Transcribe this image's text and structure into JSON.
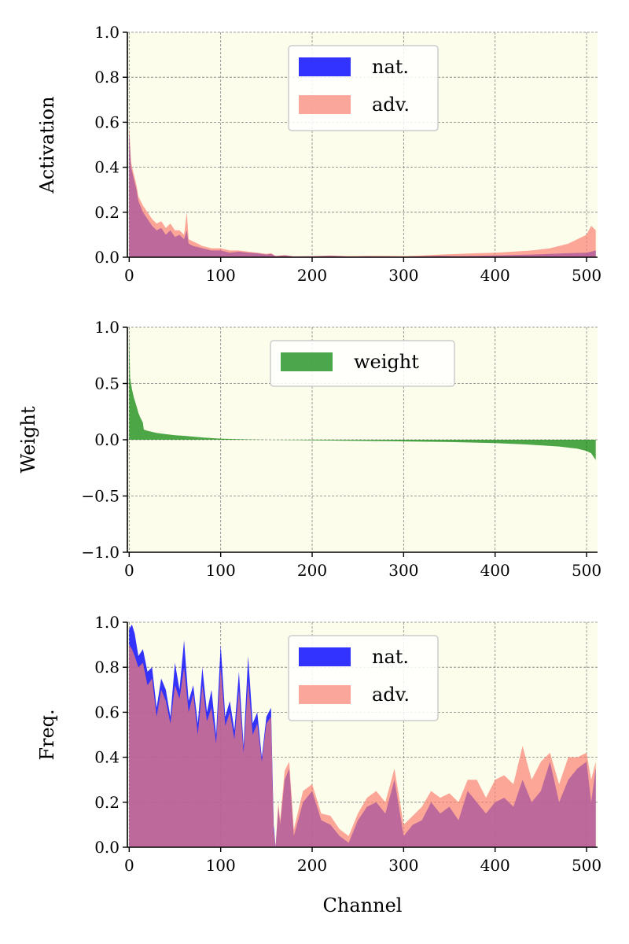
{
  "chart_data": [
    {
      "type": "area",
      "ylabel": "Activation",
      "xlabel": "",
      "xlim": [
        -2,
        512
      ],
      "ylim": [
        0,
        1
      ],
      "xticks": [
        0,
        100,
        200,
        300,
        400,
        500
      ],
      "xtick_labels": [
        "0",
        "100",
        "200",
        "300",
        "400",
        "500"
      ],
      "yticks": [
        0,
        0.2,
        0.4,
        0.6,
        0.8,
        1.0
      ],
      "ytick_labels": [
        "0.0",
        "0.2",
        "0.4",
        "0.6",
        "0.8",
        "1.0"
      ],
      "grid": true,
      "legend_position": "top-center",
      "series": [
        {
          "name": "nat.",
          "color": "#0000ff",
          "x": [
            0,
            2,
            5,
            8,
            10,
            15,
            20,
            25,
            30,
            35,
            40,
            45,
            50,
            55,
            60,
            63,
            65,
            70,
            80,
            90,
            100,
            110,
            120,
            130,
            140,
            150,
            155,
            160,
            170,
            180,
            200,
            220,
            240,
            260,
            280,
            300,
            320,
            340,
            360,
            380,
            400,
            420,
            440,
            460,
            480,
            500,
            505,
            510
          ],
          "y": [
            0.55,
            0.4,
            0.35,
            0.3,
            0.25,
            0.2,
            0.17,
            0.14,
            0.12,
            0.13,
            0.1,
            0.12,
            0.09,
            0.1,
            0.08,
            0.12,
            0.06,
            0.05,
            0.04,
            0.03,
            0.03,
            0.02,
            0.025,
            0.02,
            0.018,
            0.012,
            0.015,
            0.005,
            0.008,
            0.003,
            0.004,
            0.006,
            0.003,
            0.004,
            0.003,
            0.002,
            0.004,
            0.006,
            0.005,
            0.006,
            0.008,
            0.01,
            0.012,
            0.015,
            0.018,
            0.02,
            0.025,
            0.03
          ]
        },
        {
          "name": "adv.",
          "color": "#fa8072",
          "x": [
            0,
            2,
            5,
            8,
            10,
            15,
            20,
            25,
            30,
            35,
            40,
            45,
            50,
            55,
            60,
            63,
            65,
            70,
            80,
            90,
            100,
            110,
            120,
            130,
            140,
            150,
            155,
            160,
            170,
            180,
            200,
            220,
            240,
            260,
            280,
            300,
            320,
            340,
            360,
            380,
            400,
            420,
            440,
            460,
            480,
            500,
            505,
            510
          ],
          "y": [
            0.58,
            0.42,
            0.37,
            0.32,
            0.27,
            0.23,
            0.2,
            0.17,
            0.15,
            0.16,
            0.13,
            0.15,
            0.12,
            0.12,
            0.1,
            0.2,
            0.08,
            0.07,
            0.05,
            0.04,
            0.04,
            0.03,
            0.03,
            0.025,
            0.02,
            0.015,
            0.018,
            0.006,
            0.01,
            0.004,
            0.005,
            0.008,
            0.005,
            0.006,
            0.006,
            0.005,
            0.008,
            0.012,
            0.015,
            0.018,
            0.02,
            0.025,
            0.03,
            0.04,
            0.06,
            0.1,
            0.14,
            0.12
          ]
        }
      ]
    },
    {
      "type": "area",
      "ylabel": "Weight",
      "xlabel": "",
      "xlim": [
        -2,
        512
      ],
      "ylim": [
        -1,
        1
      ],
      "xticks": [
        0,
        100,
        200,
        300,
        400,
        500
      ],
      "xtick_labels": [
        "0",
        "100",
        "200",
        "300",
        "400",
        "500"
      ],
      "yticks": [
        -1.0,
        -0.5,
        0.0,
        0.5,
        1.0
      ],
      "ytick_labels": [
        "−1.0",
        "−0.5",
        "0.0",
        "0.5",
        "1.0"
      ],
      "grid": true,
      "legend_position": "top-center",
      "series": [
        {
          "name": "weight",
          "color": "#008000",
          "x": [
            0,
            1,
            3,
            5,
            8,
            10,
            12,
            15,
            16,
            20,
            30,
            40,
            50,
            60,
            80,
            100,
            120,
            150,
            200,
            250,
            300,
            350,
            400,
            430,
            450,
            470,
            480,
            490,
            500,
            505,
            510
          ],
          "y": [
            0.95,
            0.55,
            0.45,
            0.38,
            0.3,
            0.24,
            0.2,
            0.15,
            0.09,
            0.08,
            0.06,
            0.05,
            0.04,
            0.035,
            0.02,
            0.01,
            0.005,
            0.0,
            -0.005,
            -0.01,
            -0.015,
            -0.02,
            -0.03,
            -0.04,
            -0.05,
            -0.06,
            -0.07,
            -0.08,
            -0.1,
            -0.12,
            -0.18
          ]
        }
      ]
    },
    {
      "type": "area",
      "ylabel": "Freq.",
      "xlabel": "Channel",
      "xlim": [
        -2,
        512
      ],
      "ylim": [
        0,
        1
      ],
      "xticks": [
        0,
        100,
        200,
        300,
        400,
        500
      ],
      "xtick_labels": [
        "0",
        "100",
        "200",
        "300",
        "400",
        "500"
      ],
      "yticks": [
        0,
        0.2,
        0.4,
        0.6,
        0.8,
        1.0
      ],
      "ytick_labels": [
        "0.0",
        "0.2",
        "0.4",
        "0.6",
        "0.8",
        "1.0"
      ],
      "grid": true,
      "legend_position": "top-center",
      "series": [
        {
          "name": "nat.",
          "color": "#0000ff",
          "x": [
            0,
            3,
            6,
            10,
            15,
            20,
            25,
            30,
            35,
            40,
            45,
            50,
            55,
            60,
            65,
            70,
            75,
            80,
            85,
            90,
            95,
            100,
            105,
            110,
            115,
            120,
            125,
            130,
            135,
            140,
            145,
            150,
            155,
            158,
            160,
            163,
            165,
            170,
            175,
            180,
            190,
            200,
            210,
            220,
            230,
            240,
            250,
            260,
            270,
            280,
            290,
            300,
            310,
            320,
            330,
            340,
            350,
            360,
            370,
            380,
            390,
            400,
            410,
            420,
            430,
            440,
            450,
            460,
            470,
            480,
            490,
            500,
            505,
            510
          ],
          "y": [
            0.97,
            0.99,
            0.95,
            0.85,
            0.88,
            0.78,
            0.8,
            0.62,
            0.75,
            0.7,
            0.58,
            0.82,
            0.7,
            0.92,
            0.65,
            0.72,
            0.55,
            0.8,
            0.6,
            0.7,
            0.5,
            0.9,
            0.58,
            0.65,
            0.52,
            0.78,
            0.45,
            0.85,
            0.55,
            0.6,
            0.4,
            0.58,
            0.62,
            0.1,
            0.0,
            0.18,
            0.1,
            0.3,
            0.35,
            0.05,
            0.2,
            0.25,
            0.12,
            0.1,
            0.05,
            0.02,
            0.12,
            0.18,
            0.2,
            0.15,
            0.3,
            0.05,
            0.1,
            0.12,
            0.2,
            0.15,
            0.18,
            0.12,
            0.25,
            0.2,
            0.15,
            0.2,
            0.22,
            0.18,
            0.3,
            0.2,
            0.25,
            0.38,
            0.2,
            0.3,
            0.35,
            0.38,
            0.2,
            0.35
          ]
        },
        {
          "name": "adv.",
          "color": "#fa8072",
          "x": [
            0,
            3,
            6,
            10,
            15,
            20,
            25,
            30,
            35,
            40,
            45,
            50,
            55,
            60,
            65,
            70,
            75,
            80,
            85,
            90,
            95,
            100,
            105,
            110,
            115,
            120,
            125,
            130,
            135,
            140,
            145,
            150,
            155,
            158,
            160,
            163,
            165,
            170,
            175,
            180,
            190,
            200,
            210,
            220,
            230,
            240,
            250,
            260,
            270,
            280,
            290,
            300,
            310,
            320,
            330,
            340,
            350,
            360,
            370,
            380,
            390,
            400,
            410,
            420,
            430,
            440,
            450,
            460,
            470,
            480,
            490,
            500,
            505,
            510
          ],
          "y": [
            0.9,
            0.88,
            0.85,
            0.8,
            0.82,
            0.72,
            0.75,
            0.58,
            0.7,
            0.65,
            0.55,
            0.72,
            0.66,
            0.8,
            0.6,
            0.68,
            0.5,
            0.72,
            0.56,
            0.62,
            0.46,
            0.8,
            0.54,
            0.6,
            0.48,
            0.7,
            0.42,
            0.74,
            0.5,
            0.55,
            0.38,
            0.55,
            0.58,
            0.08,
            0.0,
            0.2,
            0.12,
            0.34,
            0.38,
            0.08,
            0.25,
            0.28,
            0.15,
            0.14,
            0.08,
            0.05,
            0.15,
            0.22,
            0.25,
            0.2,
            0.35,
            0.1,
            0.14,
            0.18,
            0.25,
            0.22,
            0.24,
            0.2,
            0.3,
            0.3,
            0.22,
            0.3,
            0.32,
            0.28,
            0.45,
            0.3,
            0.38,
            0.42,
            0.28,
            0.4,
            0.4,
            0.42,
            0.3,
            0.38
          ]
        }
      ]
    }
  ]
}
